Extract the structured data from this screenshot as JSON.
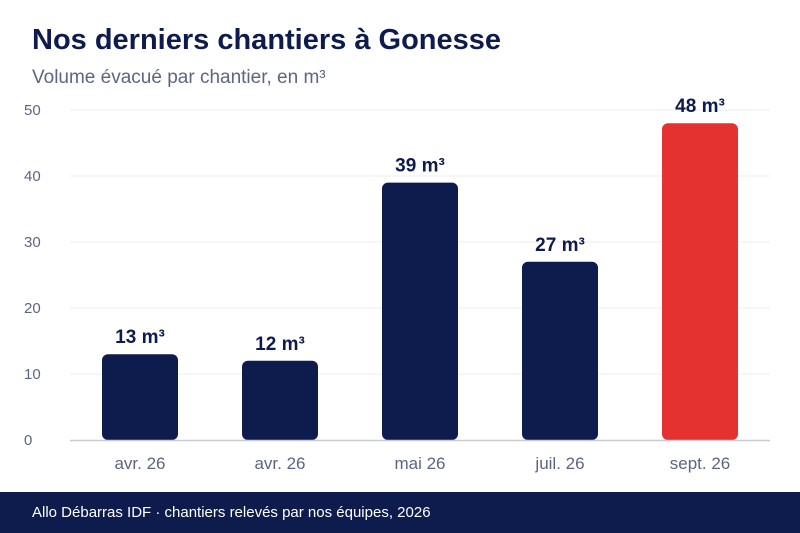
{
  "header": {
    "title": "Nos derniers chantiers à Gonesse",
    "subtitle": "Volume évacué par chantier, en m³"
  },
  "footer": {
    "source": "Allo Débarras IDF · chantiers relevés par nos équipes, 2026"
  },
  "colors": {
    "bar": "#0e1b4d",
    "highlight": "#e3322f",
    "label": "#0e1b4d",
    "tick": "#5d6680",
    "grid": "#ececf2",
    "axis": "#c9ccd8"
  },
  "chart_data": {
    "type": "bar",
    "categories": [
      "avr. 26",
      "avr. 26",
      "mai 26",
      "juil. 26",
      "sept. 26"
    ],
    "values": [
      13,
      12,
      39,
      27,
      48
    ],
    "value_labels": [
      "13 m³",
      "12 m³",
      "39 m³",
      "27 m³",
      "48 m³"
    ],
    "highlight_index": 4,
    "ylim": [
      0,
      50
    ],
    "yticks": [
      0,
      10,
      20,
      30,
      40,
      50
    ],
    "grid": true,
    "xlabel": "",
    "ylabel": ""
  }
}
